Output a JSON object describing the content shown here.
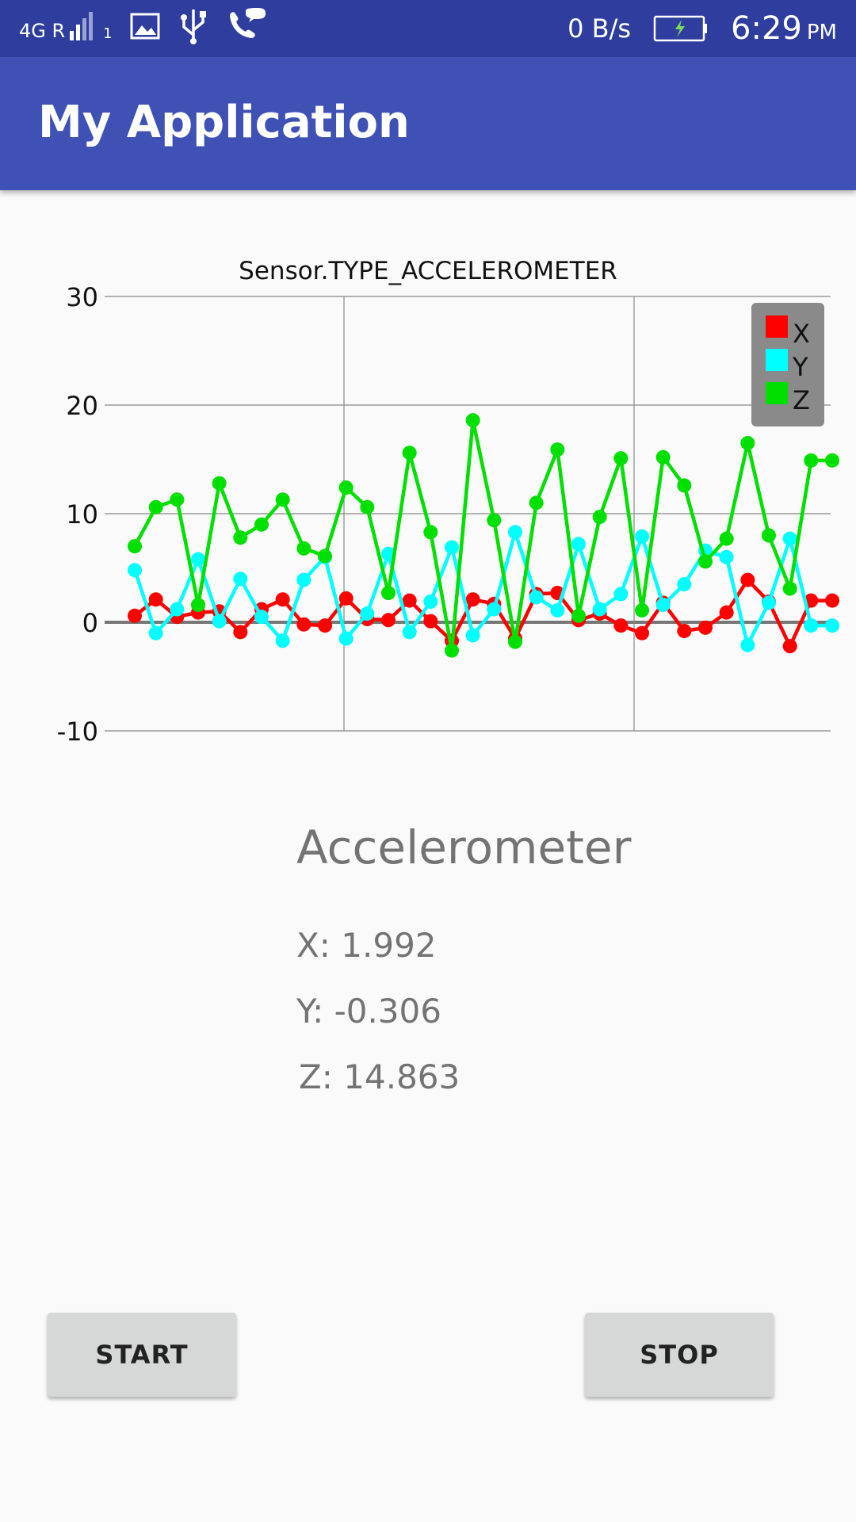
{
  "status_bar": {
    "network": "4G R",
    "sim_slot": "1",
    "speed": "0 B/s",
    "time": "6:29",
    "ampm": "PM"
  },
  "app_bar": {
    "title": "My Application"
  },
  "chart_data": {
    "type": "line",
    "title": "Sensor.TYPE_ACCELEROMETER",
    "xlabel": "",
    "ylabel": "",
    "ylim": [
      -10,
      30
    ],
    "yticks": [
      "30",
      "20",
      "10",
      "0",
      "-10"
    ],
    "grid": true,
    "legend_position": "top-right",
    "x": [
      0,
      1,
      2,
      3,
      4,
      5,
      6,
      7,
      8,
      9,
      10,
      11,
      12,
      13,
      14,
      15,
      16,
      17,
      18,
      19,
      20,
      21,
      22,
      23,
      24,
      25,
      26,
      27,
      28,
      29,
      30,
      31,
      32,
      33
    ],
    "series": [
      {
        "name": "X",
        "color": "#ff0000",
        "values": [
          0.6,
          2.1,
          0.5,
          0.9,
          1.0,
          -0.9,
          1.2,
          2.1,
          -0.2,
          -0.3,
          2.2,
          0.3,
          0.2,
          2.0,
          0.1,
          -1.7,
          2.1,
          1.7,
          -1.5,
          2.6,
          2.7,
          0.2,
          0.8,
          -0.3,
          -1.0,
          1.8,
          -0.8,
          -0.5,
          0.9,
          3.9,
          1.9,
          -2.2,
          2.0,
          2.0
        ]
      },
      {
        "name": "Y",
        "color": "#00ffff",
        "values": [
          4.8,
          -1.0,
          1.2,
          5.8,
          0.1,
          4.0,
          0.5,
          -1.7,
          3.9,
          6.0,
          -1.5,
          0.8,
          6.3,
          -0.9,
          1.9,
          6.9,
          -1.2,
          1.2,
          8.3,
          2.3,
          1.1,
          7.2,
          1.2,
          2.6,
          7.9,
          1.6,
          3.5,
          6.6,
          6.0,
          -2.1,
          1.8,
          7.7,
          -0.3,
          -0.3
        ]
      },
      {
        "name": "Z",
        "color": "#00e000",
        "values": [
          7.0,
          10.6,
          11.3,
          1.6,
          12.8,
          7.8,
          9.0,
          11.3,
          6.8,
          6.1,
          12.4,
          10.6,
          2.7,
          15.6,
          8.3,
          -2.6,
          18.6,
          9.4,
          -1.8,
          11.0,
          15.9,
          0.6,
          9.7,
          15.1,
          1.1,
          15.2,
          12.6,
          5.6,
          7.7,
          16.5,
          8.0,
          3.1,
          14.9,
          14.9
        ]
      }
    ]
  },
  "sensor_panel": {
    "heading": "Accelerometer",
    "x_reading": "X: 1.992",
    "y_reading": "Y: -0.306",
    "z_reading": "Z: 14.863"
  },
  "buttons": {
    "start": "START",
    "stop": "STOP"
  }
}
